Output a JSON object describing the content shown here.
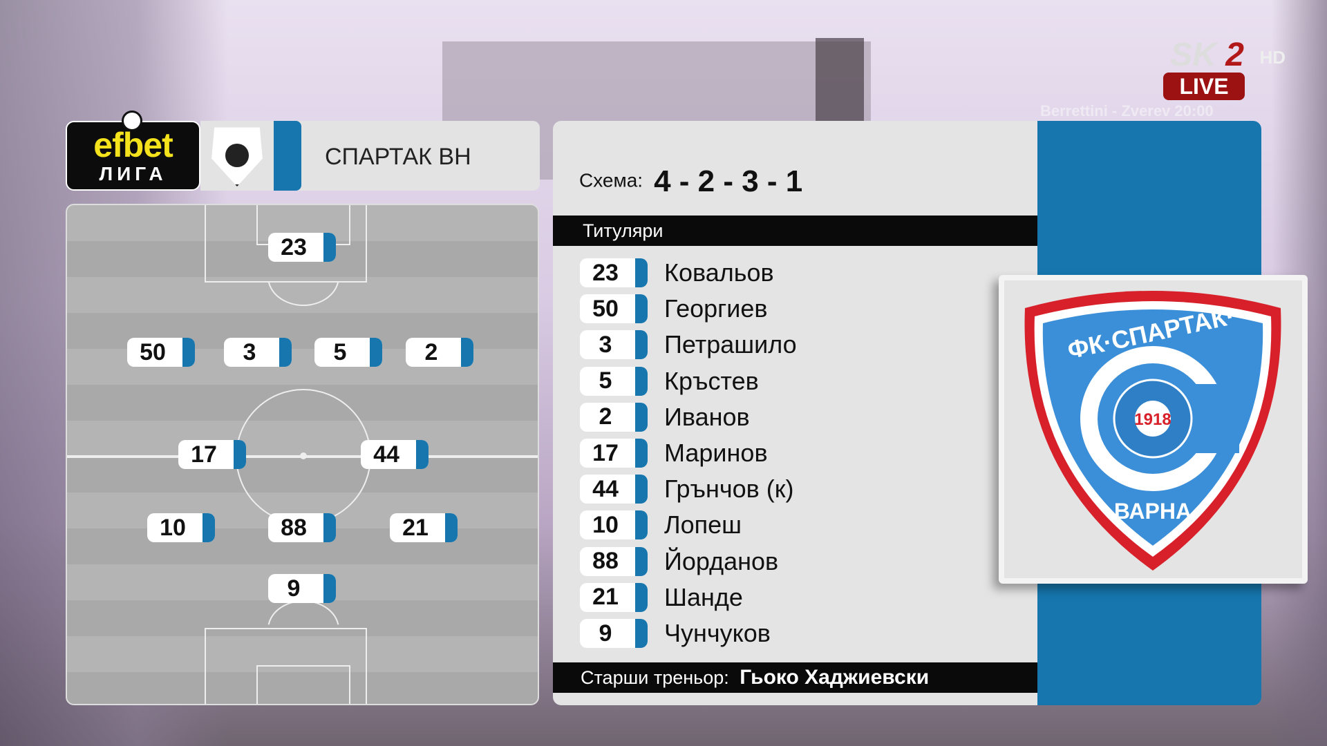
{
  "broadcast": {
    "channel": "SK",
    "channel_num": "2",
    "hd": "HD",
    "live": "LIVE",
    "ticker": "Berrettini - Zverev   20:00"
  },
  "league": {
    "name": "efbet",
    "sub": "ЛИГА"
  },
  "team": {
    "name": "СПАРТАК ВН",
    "crest_year": "1918",
    "crest_top": "ФК·СПАРТАК·",
    "crest_bottom": "ВАРНА"
  },
  "formation": {
    "label": "Схема:",
    "value": "4 - 2 - 3 - 1"
  },
  "starters_label": "Титуляри",
  "players": [
    {
      "num": "23",
      "name": "Ковальов"
    },
    {
      "num": "50",
      "name": "Георгиев"
    },
    {
      "num": "3",
      "name": "Петрашило"
    },
    {
      "num": "5",
      "name": "Кръстев"
    },
    {
      "num": "2",
      "name": "Иванов"
    },
    {
      "num": "17",
      "name": "Маринов"
    },
    {
      "num": "44",
      "name": "Грънчов (к)"
    },
    {
      "num": "10",
      "name": "Лопеш"
    },
    {
      "num": "88",
      "name": "Йорданов"
    },
    {
      "num": "21",
      "name": "Шанде"
    },
    {
      "num": "9",
      "name": "Чунчуков"
    }
  ],
  "coach": {
    "label": "Старши треньор:",
    "name": "Гьоко Хаджиевски"
  },
  "colors": {
    "team_blue": "#1676ad",
    "panel": "#e4e4e4",
    "crest_red": "#d8202a"
  }
}
